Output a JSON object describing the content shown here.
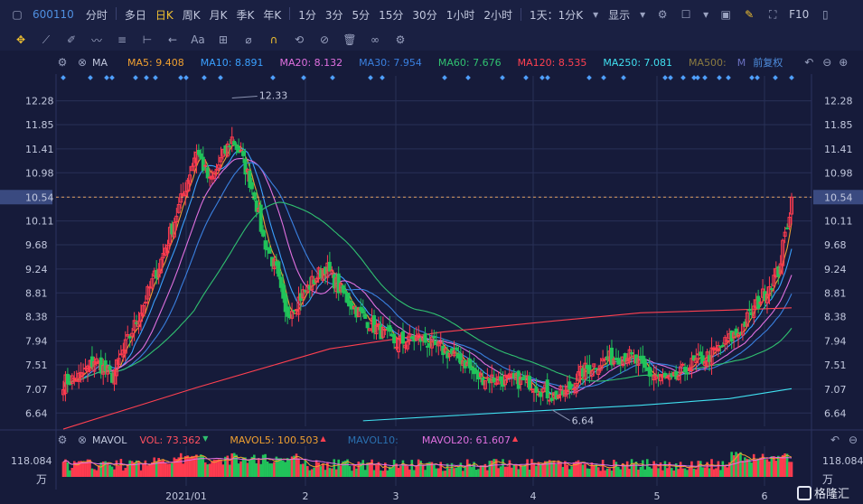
{
  "stock_code": "600110",
  "timeframes": [
    {
      "label": "分时",
      "active": false
    },
    {
      "label": "多日",
      "active": false
    },
    {
      "label": "日K",
      "active": true
    },
    {
      "label": "周K",
      "active": false
    },
    {
      "label": "月K",
      "active": false
    },
    {
      "label": "季K",
      "active": false
    },
    {
      "label": "年K",
      "active": false
    },
    {
      "label": "1分",
      "active": false
    },
    {
      "label": "3分",
      "active": false
    },
    {
      "label": "5分",
      "active": false
    },
    {
      "label": "15分",
      "active": false
    },
    {
      "label": "30分",
      "active": false
    },
    {
      "label": "1小时",
      "active": false
    },
    {
      "label": "2小时",
      "active": false
    }
  ],
  "period_select": "1天：1分K",
  "display_label": "显示",
  "fio_label": "F10",
  "ma_bar": {
    "label": "MA",
    "items": [
      {
        "text": "MA5: 9.408",
        "color": "#f0a030"
      },
      {
        "text": "MA10: 8.891",
        "color": "#3aa0ff"
      },
      {
        "text": "MA20: 8.132",
        "color": "#e070e0"
      },
      {
        "text": "MA30: 7.954",
        "color": "#3a80e0"
      },
      {
        "text": "MA60: 7.676",
        "color": "#30c070"
      },
      {
        "text": "MA120: 8.535",
        "color": "#ff4050"
      },
      {
        "text": "MA250: 7.081",
        "color": "#40e0f0"
      },
      {
        "text": "MA500:",
        "color": "#8a7a40"
      }
    ],
    "adjust": "前复权"
  },
  "price_axis": [
    "12.28",
    "11.85",
    "11.41",
    "10.98",
    "10.54",
    "10.11",
    "9.68",
    "9.24",
    "8.81",
    "8.38",
    "7.94",
    "7.51",
    "7.07",
    "6.64"
  ],
  "current_price": "10.54",
  "price_high_annotation": "12.33",
  "price_low_annotation": "6.64",
  "vol_bar": {
    "label": "MAVOL",
    "items": [
      {
        "text": "VOL: 73.362",
        "color": "#ff5060",
        "arrow": "▼",
        "arrow_color": "#30c070"
      },
      {
        "text": "MAVOL5: 100.503",
        "color": "#f0a030",
        "arrow": "▲",
        "arrow_color": "#ff4050"
      },
      {
        "text": "MAVOL10:",
        "color": "#2a70b0",
        "arrow": "",
        "arrow_color": ""
      },
      {
        "text": "MAVOL20: 61.607",
        "color": "#e070e0",
        "arrow": "▲",
        "arrow_color": "#ff4050"
      }
    ]
  },
  "vol_axis_value": "118.084",
  "vol_unit": "万",
  "x_axis": [
    "2021/01",
    "2",
    "3",
    "4",
    "5",
    "6"
  ],
  "watermark": "格隆汇",
  "colors": {
    "up": "#ff3b4f",
    "down": "#21c35a",
    "background": "#161b3a",
    "grid": "#283057"
  }
}
